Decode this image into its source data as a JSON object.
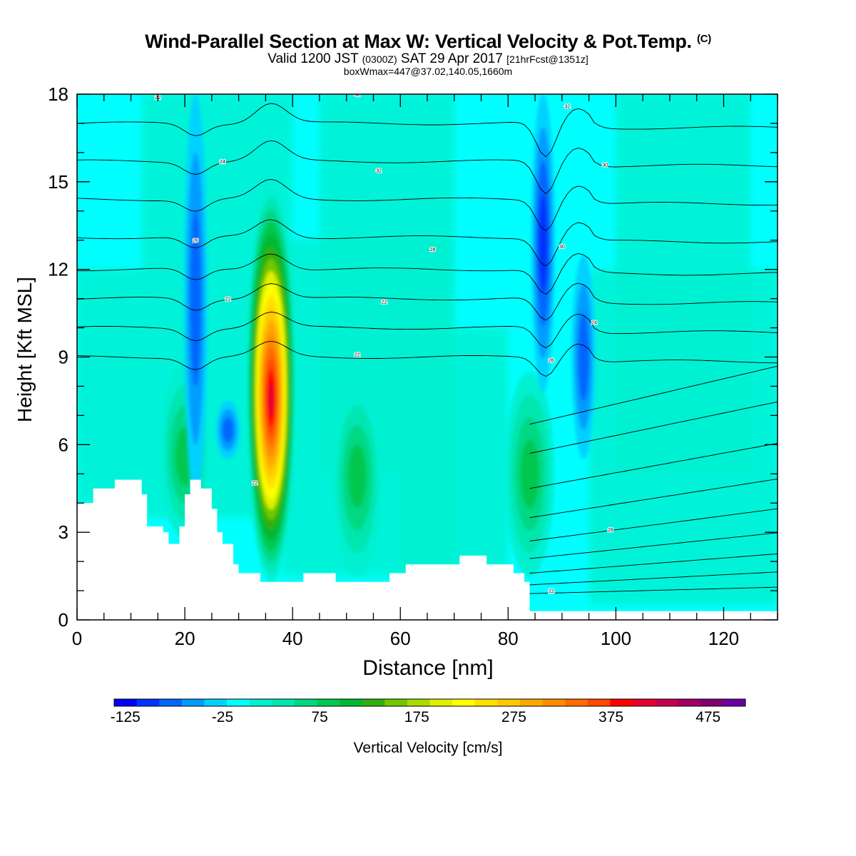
{
  "header": {
    "title_main": "Wind-Parallel Section at Max W: Vertical Velocity & Pot.Temp.",
    "title_mark": "(C)",
    "valid_prefix": "Valid 1200 JST",
    "valid_utc": "(0300Z)",
    "valid_date": "SAT 29 Apr 2017",
    "valid_fcst": "[21hrFcst@1351z]",
    "box_info": "boxWmax=447@37.02,140.05,1660m"
  },
  "colorbar": {
    "label": "Vertical Velocity [cm/s]",
    "tick_labels": [
      "-125",
      "-25",
      "75",
      "175",
      "275",
      "375",
      "475"
    ],
    "colors": [
      "#0000f2",
      "#0033ff",
      "#0066ff",
      "#009cff",
      "#00d2ff",
      "#00ffff",
      "#00f0d0",
      "#00e6b0",
      "#00d884",
      "#00c850",
      "#00b830",
      "#30b010",
      "#70c800",
      "#a8dc00",
      "#e0f000",
      "#ffff00",
      "#ffe000",
      "#ffc800",
      "#ffa800",
      "#ff8c00",
      "#ff6c00",
      "#ff4800",
      "#ff0000",
      "#e6002e",
      "#c80052",
      "#a00064",
      "#800070",
      "#6a00a0"
    ]
  },
  "chart_data": {
    "type": "heatmap",
    "xlabel": "Distance [nm]",
    "ylabel": "Height [Kft MSL]",
    "xlim": [
      0,
      130
    ],
    "ylim": [
      0,
      18
    ],
    "xticks": [
      0,
      20,
      40,
      60,
      80,
      100,
      120
    ],
    "yticks": [
      0,
      3,
      6,
      9,
      12,
      15,
      18
    ],
    "field_units": "cm/s",
    "field_range": [
      -125,
      525
    ],
    "field_max": 447,
    "updrafts": [
      {
        "x": 36,
        "z_base": 1.3,
        "z_top": 14.9,
        "z_peak": 7.5,
        "w_peak": 447
      },
      {
        "x": 20,
        "z_base": 2.8,
        "z_top": 8.8,
        "z_peak": 5.5,
        "w_peak": 120
      },
      {
        "x": 52,
        "z_base": 1.5,
        "z_top": 8.0,
        "z_peak": 5.0,
        "w_peak": 110
      },
      {
        "x": 84,
        "z_base": 1.5,
        "z_top": 8.5,
        "z_peak": 5.0,
        "w_peak": 110
      }
    ],
    "downdrafts": [
      {
        "x": 22,
        "z_base": 4.0,
        "z_top": 18.0,
        "w_min": -95
      },
      {
        "x": 28,
        "z_base": 5.5,
        "z_top": 7.5,
        "w_min": -85
      },
      {
        "x": 86.5,
        "z_base": 7.8,
        "z_top": 18.0,
        "w_min": -120
      },
      {
        "x": 94,
        "z_base": 5.5,
        "z_top": 12.5,
        "w_min": -95
      }
    ],
    "terrain_profile": [
      [
        0,
        4.0
      ],
      [
        3,
        4.5
      ],
      [
        7,
        4.8
      ],
      [
        11,
        4.8
      ],
      [
        12,
        4.3
      ],
      [
        13,
        3.2
      ],
      [
        16,
        3.0
      ],
      [
        17,
        2.6
      ],
      [
        18,
        2.6
      ],
      [
        19,
        3.2
      ],
      [
        20,
        4.3
      ],
      [
        21,
        4.8
      ],
      [
        23,
        4.5
      ],
      [
        25,
        3.8
      ],
      [
        26,
        3.0
      ],
      [
        27,
        2.6
      ],
      [
        29,
        1.9
      ],
      [
        30,
        1.6
      ],
      [
        33,
        1.6
      ],
      [
        34,
        1.3
      ],
      [
        41,
        1.3
      ],
      [
        42,
        1.6
      ],
      [
        47,
        1.6
      ],
      [
        48,
        1.3
      ],
      [
        57,
        1.3
      ],
      [
        58,
        1.6
      ],
      [
        61,
        1.9
      ],
      [
        70,
        1.9
      ],
      [
        71,
        2.2
      ],
      [
        75,
        2.2
      ],
      [
        76,
        1.9
      ],
      [
        80,
        1.9
      ],
      [
        81,
        1.6
      ],
      [
        83,
        1.3
      ],
      [
        84,
        0.3
      ],
      [
        85,
        0.3
      ],
      [
        130,
        0.3
      ]
    ],
    "contour_labels": [
      "22",
      "24",
      "26",
      "28",
      "30",
      "32"
    ],
    "isentrope_heights_at_x0": [
      17.0,
      15.7,
      14.4,
      13.1,
      12.0,
      11.0,
      10.0,
      9.0
    ]
  }
}
